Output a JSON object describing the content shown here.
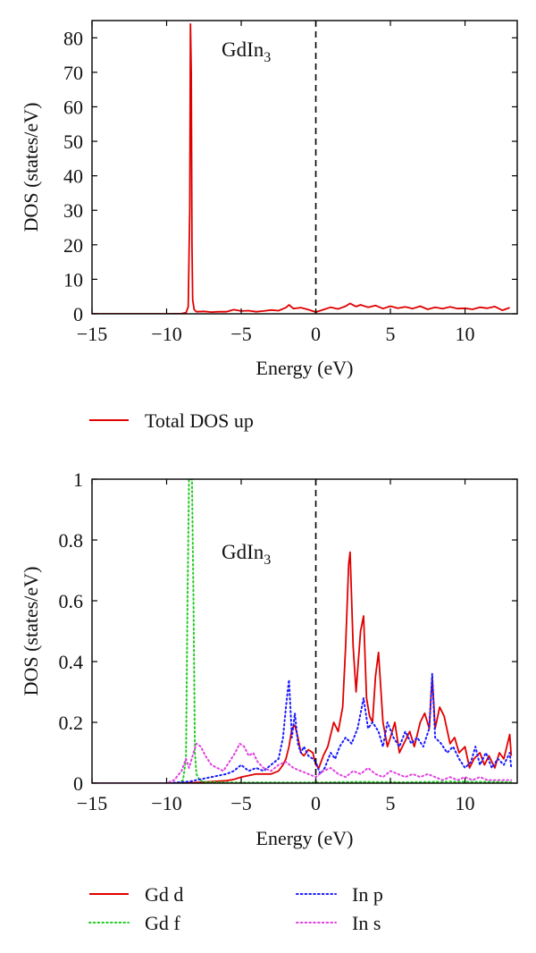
{
  "colors": {
    "total_up": "#e00000",
    "gd_d": "#e00000",
    "gd_f": "#22cc22",
    "in_p": "#1a1aff",
    "in_s": "#e040e0",
    "fermi": "#000000"
  },
  "chart_data": [
    {
      "type": "line",
      "compound_label": "GdIn",
      "compound_sub": "3",
      "xlabel": "Energy (eV)",
      "ylabel": "DOS (states/eV)",
      "xlim": [
        -15,
        13.5
      ],
      "ylim": [
        0,
        85
      ],
      "xticks": [
        -15,
        -10,
        -5,
        0,
        5,
        10
      ],
      "yticks": [
        0,
        10,
        20,
        30,
        40,
        50,
        60,
        70,
        80
      ],
      "fermi_level": 0,
      "legend_position": "below",
      "series": [
        {
          "name": "Total DOS up",
          "style": "solid",
          "color_key": "total_up",
          "x": [
            -15,
            -10,
            -9,
            -8.7,
            -8.55,
            -8.45,
            -8.4,
            -8.35,
            -8.3,
            -8.25,
            -8.15,
            -8.0,
            -7.5,
            -7,
            -6.5,
            -6,
            -5.5,
            -5,
            -4.5,
            -4,
            -3.5,
            -3,
            -2.5,
            -2,
            -1.8,
            -1.5,
            -1,
            -0.5,
            0,
            0.5,
            1,
            1.5,
            2,
            2.3,
            2.7,
            3,
            3.5,
            4,
            4.5,
            5,
            5.5,
            6,
            6.5,
            7,
            7.5,
            8,
            8.5,
            9,
            9.5,
            10,
            10.5,
            11,
            11.5,
            12,
            12.5,
            13
          ],
          "y": [
            0,
            0,
            0.05,
            0.3,
            2,
            30,
            84,
            70,
            20,
            4,
            1.2,
            0.6,
            0.7,
            0.5,
            0.6,
            0.6,
            1.2,
            0.8,
            0.9,
            0.6,
            0.8,
            1.1,
            0.9,
            1.8,
            2.6,
            1.5,
            1.8,
            1.2,
            0.5,
            1.2,
            1.9,
            1.4,
            2.2,
            3.0,
            2.1,
            2.6,
            1.9,
            2.4,
            1.5,
            2.2,
            1.6,
            2.0,
            1.5,
            2.2,
            1.3,
            1.9,
            1.5,
            2.0,
            1.5,
            1.6,
            1.3,
            1.9,
            1.6,
            2.1,
            1.0,
            1.8
          ]
        }
      ]
    },
    {
      "type": "line",
      "compound_label": "GdIn",
      "compound_sub": "3",
      "xlabel": "Energy (eV)",
      "ylabel": "DOS (states/eV)",
      "xlim": [
        -15,
        13.5
      ],
      "ylim": [
        0,
        1
      ],
      "xticks": [
        -15,
        -10,
        -5,
        0,
        5,
        10
      ],
      "yticks": [
        0,
        0.2,
        0.4,
        0.6,
        0.8,
        1
      ],
      "fermi_level": 0,
      "legend_position": "below",
      "series": [
        {
          "name": "Gd d",
          "style": "solid",
          "color_key": "gd_d",
          "x": [
            -15,
            -10,
            -8,
            -6,
            -5.5,
            -5,
            -4.5,
            -4,
            -3.5,
            -3,
            -2.5,
            -2.2,
            -2,
            -1.8,
            -1.6,
            -1.4,
            -1.2,
            -1,
            -0.8,
            -0.5,
            -0.2,
            0,
            0.2,
            0.5,
            0.8,
            1.2,
            1.5,
            1.8,
            2.0,
            2.2,
            2.3,
            2.5,
            2.7,
            3.0,
            3.2,
            3.4,
            3.6,
            3.8,
            4.0,
            4.2,
            4.5,
            4.8,
            5.0,
            5.3,
            5.6,
            6.0,
            6.3,
            6.6,
            7.0,
            7.3,
            7.6,
            7.8,
            8.0,
            8.3,
            8.6,
            9.0,
            9.3,
            9.6,
            10.0,
            10.3,
            10.6,
            11.0,
            11.3,
            11.6,
            12.0,
            12.3,
            12.6,
            13.0,
            13.1
          ],
          "y": [
            0,
            0,
            0.002,
            0.008,
            0.012,
            0.02,
            0.025,
            0.03,
            0.03,
            0.03,
            0.04,
            0.06,
            0.08,
            0.12,
            0.18,
            0.19,
            0.15,
            0.1,
            0.09,
            0.11,
            0.1,
            0.06,
            0.05,
            0.09,
            0.12,
            0.2,
            0.17,
            0.25,
            0.45,
            0.72,
            0.76,
            0.45,
            0.3,
            0.5,
            0.55,
            0.28,
            0.22,
            0.2,
            0.35,
            0.43,
            0.2,
            0.12,
            0.15,
            0.2,
            0.1,
            0.14,
            0.17,
            0.12,
            0.2,
            0.23,
            0.18,
            0.35,
            0.18,
            0.25,
            0.22,
            0.13,
            0.15,
            0.1,
            0.12,
            0.05,
            0.08,
            0.1,
            0.06,
            0.09,
            0.05,
            0.1,
            0.08,
            0.16,
            0.09
          ]
        },
        {
          "name": "Gd f",
          "style": "dotted",
          "color_key": "gd_f",
          "x": [
            -15,
            -10,
            -9.2,
            -8.9,
            -8.7,
            -8.6,
            -8.5,
            -8.4,
            -8.3,
            -8.2,
            -8.1,
            -8.0,
            -7.8,
            -7.5,
            -6,
            -3,
            0,
            3,
            6,
            9,
            12,
            13.1
          ],
          "y": [
            0,
            0,
            0.002,
            0.01,
            0.08,
            0.6,
            1.0,
            1.0,
            1.0,
            0.6,
            0.1,
            0.03,
            0.01,
            0.004,
            0.002,
            0.002,
            0.002,
            0.004,
            0.003,
            0.005,
            0.004,
            0.003
          ]
        },
        {
          "name": "In p",
          "style": "dotted",
          "color_key": "in_p",
          "x": [
            -15,
            -10,
            -8.5,
            -8,
            -7,
            -6,
            -5.5,
            -5,
            -4.5,
            -4,
            -3.5,
            -3,
            -2.5,
            -2.2,
            -2.0,
            -1.8,
            -1.6,
            -1.4,
            -1.2,
            -1.0,
            -0.8,
            -0.5,
            -0.2,
            0,
            0.3,
            0.6,
            1.0,
            1.3,
            1.6,
            2.0,
            2.4,
            2.8,
            3.2,
            3.5,
            3.8,
            4.2,
            4.5,
            4.8,
            5.2,
            5.6,
            6.0,
            6.4,
            6.8,
            7.2,
            7.6,
            7.8,
            8.0,
            8.4,
            8.8,
            9.2,
            9.6,
            10.0,
            10.4,
            10.7,
            11.0,
            11.4,
            11.8,
            12.2,
            12.6,
            13.0,
            13.1
          ],
          "y": [
            0,
            0,
            0.005,
            0.01,
            0.02,
            0.03,
            0.04,
            0.06,
            0.04,
            0.05,
            0.04,
            0.06,
            0.08,
            0.15,
            0.25,
            0.34,
            0.15,
            0.23,
            0.13,
            0.1,
            0.12,
            0.09,
            0.08,
            0.07,
            0.03,
            0.05,
            0.1,
            0.08,
            0.12,
            0.15,
            0.13,
            0.18,
            0.28,
            0.18,
            0.2,
            0.17,
            0.12,
            0.2,
            0.15,
            0.12,
            0.17,
            0.13,
            0.15,
            0.12,
            0.18,
            0.36,
            0.15,
            0.13,
            0.1,
            0.12,
            0.08,
            0.05,
            0.07,
            0.12,
            0.06,
            0.1,
            0.05,
            0.08,
            0.06,
            0.1,
            0.05
          ]
        },
        {
          "name": "In s",
          "style": "dotted",
          "color_key": "in_s",
          "x": [
            -15,
            -10,
            -9.5,
            -9,
            -8.7,
            -8.5,
            -8.2,
            -8.0,
            -7.7,
            -7.4,
            -7.0,
            -6.6,
            -6.2,
            -5.8,
            -5.4,
            -5.1,
            -4.8,
            -4.5,
            -4.2,
            -3.9,
            -3.5,
            -3.0,
            -2.5,
            -2.0,
            -1.5,
            -1.0,
            -0.5,
            0,
            0.5,
            1.0,
            1.5,
            2.0,
            2.5,
            3.0,
            3.5,
            4.0,
            4.5,
            5.0,
            5.5,
            6.0,
            6.5,
            7.0,
            7.5,
            8.0,
            8.5,
            9.0,
            9.5,
            10.0,
            10.5,
            11.0,
            11.5,
            12.0,
            12.5,
            13.1
          ],
          "y": [
            0,
            0,
            0.01,
            0.04,
            0.08,
            0.05,
            0.1,
            0.13,
            0.12,
            0.09,
            0.06,
            0.05,
            0.04,
            0.07,
            0.1,
            0.13,
            0.12,
            0.09,
            0.1,
            0.07,
            0.05,
            0.04,
            0.06,
            0.07,
            0.05,
            0.04,
            0.03,
            0.02,
            0.04,
            0.05,
            0.03,
            0.02,
            0.04,
            0.03,
            0.05,
            0.03,
            0.02,
            0.04,
            0.03,
            0.02,
            0.03,
            0.02,
            0.03,
            0.02,
            0.01,
            0.02,
            0.01,
            0.02,
            0.01,
            0.02,
            0.01,
            0.01,
            0.01,
            0.01
          ]
        }
      ]
    }
  ]
}
